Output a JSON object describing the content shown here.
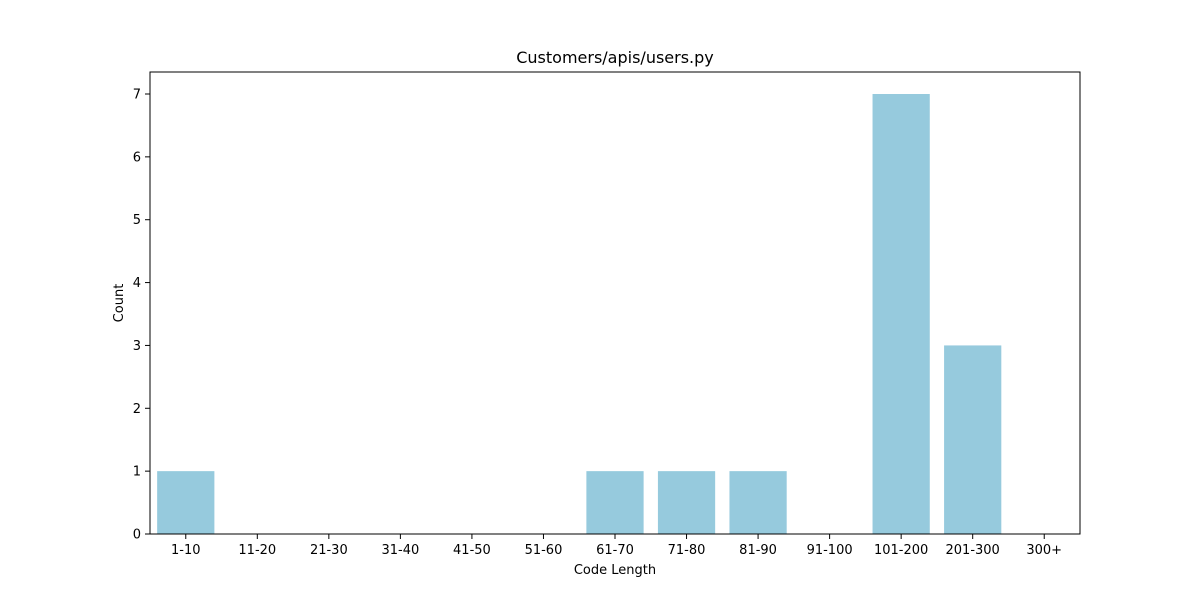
{
  "chart_data": {
    "type": "bar",
    "title": "Customers/apis/users.py",
    "xlabel": "Code Length",
    "ylabel": "Count",
    "categories": [
      "1-10",
      "11-20",
      "21-30",
      "31-40",
      "41-50",
      "51-60",
      "61-70",
      "71-80",
      "81-90",
      "91-100",
      "101-200",
      "201-300",
      "300+"
    ],
    "values": [
      1,
      0,
      0,
      0,
      0,
      0,
      1,
      1,
      1,
      0,
      7,
      3,
      0
    ],
    "ylim": [
      0,
      7.35
    ],
    "yticks": [
      "0",
      "1",
      "2",
      "3",
      "4",
      "5",
      "6",
      "7"
    ],
    "grid": false,
    "legend": "none",
    "bar_color": "#96cadd",
    "axis_color": "#000000"
  }
}
